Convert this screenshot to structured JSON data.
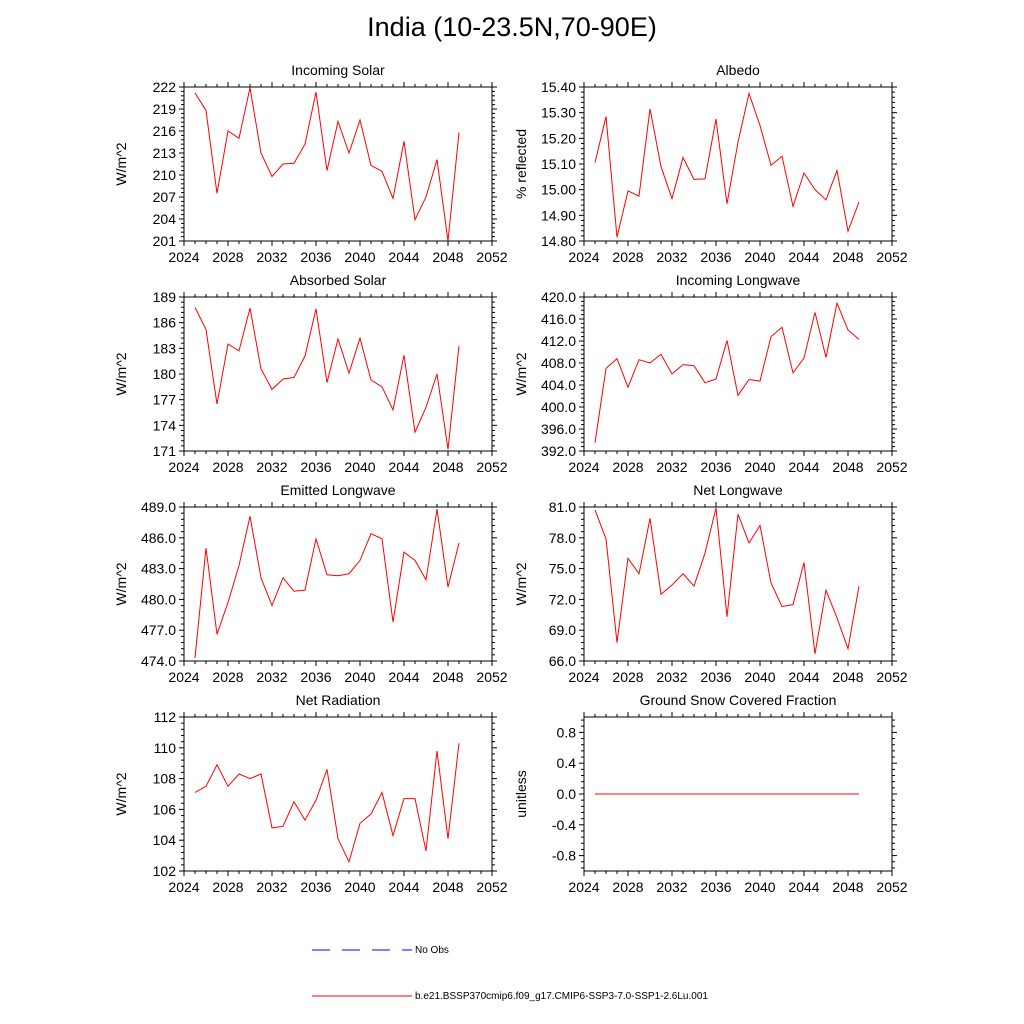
{
  "title": "India (10-23.5N,70-90E)",
  "colors": {
    "model": "#ff0000",
    "obs": "#0000ff"
  },
  "legend": {
    "obs_label": "No Obs",
    "model_label": "b.e21.BSSP370cmip6.f09_g17.CMIP6-SSP3-7.0-SSP1-2.6Lu.001"
  },
  "chart_data": [
    {
      "type": "line",
      "title": "Incoming Solar",
      "ylabel": "W/m^2",
      "xlim": [
        2024,
        2052
      ],
      "xticks": [
        2024,
        2028,
        2032,
        2036,
        2040,
        2044,
        2048,
        2052
      ],
      "ylim": [
        201,
        222
      ],
      "yticks": [
        201,
        204,
        207,
        210,
        213,
        216,
        219,
        222
      ],
      "ytick_decimals": 0,
      "x": [
        2025,
        2026,
        2027,
        2028,
        2029,
        2030,
        2031,
        2032,
        2033,
        2034,
        2035,
        2036,
        2037,
        2038,
        2039,
        2040,
        2041,
        2042,
        2043,
        2044,
        2045,
        2046,
        2047,
        2048,
        2049
      ],
      "series": [
        {
          "values": [
            221.2,
            218.8,
            207.5,
            216.0,
            215.0,
            221.9,
            213.0,
            209.8,
            211.5,
            211.6,
            214.2,
            221.3,
            210.6,
            217.3,
            213.0,
            217.5,
            211.3,
            210.5,
            206.8,
            214.6,
            203.9,
            207.0,
            212.1,
            201.0,
            215.8
          ]
        }
      ]
    },
    {
      "type": "line",
      "title": "Albedo",
      "ylabel": "% reflected",
      "xlim": [
        2024,
        2052
      ],
      "xticks": [
        2024,
        2028,
        2032,
        2036,
        2040,
        2044,
        2048,
        2052
      ],
      "ylim": [
        14.8,
        15.4
      ],
      "yticks": [
        14.8,
        14.9,
        15.0,
        15.1,
        15.2,
        15.3,
        15.4
      ],
      "ytick_decimals": 2,
      "x": [
        2025,
        2026,
        2027,
        2028,
        2029,
        2030,
        2031,
        2032,
        2033,
        2034,
        2035,
        2036,
        2037,
        2038,
        2039,
        2040,
        2041,
        2042,
        2043,
        2044,
        2045,
        2046,
        2047,
        2048,
        2049
      ],
      "series": [
        {
          "values": [
            15.105,
            15.285,
            14.815,
            14.995,
            14.975,
            15.315,
            15.09,
            14.965,
            15.125,
            15.04,
            15.042,
            15.275,
            14.945,
            15.185,
            15.375,
            15.25,
            15.095,
            15.13,
            14.935,
            15.065,
            15.0,
            14.96,
            15.075,
            14.838,
            14.952
          ]
        }
      ]
    },
    {
      "type": "line",
      "title": "Absorbed Solar",
      "ylabel": "W/m^2",
      "xlim": [
        2024,
        2052
      ],
      "xticks": [
        2024,
        2028,
        2032,
        2036,
        2040,
        2044,
        2048,
        2052
      ],
      "ylim": [
        171,
        189
      ],
      "yticks": [
        171,
        174,
        177,
        180,
        183,
        186,
        189
      ],
      "ytick_decimals": 0,
      "x": [
        2025,
        2026,
        2027,
        2028,
        2029,
        2030,
        2031,
        2032,
        2033,
        2034,
        2035,
        2036,
        2037,
        2038,
        2039,
        2040,
        2041,
        2042,
        2043,
        2044,
        2045,
        2046,
        2047,
        2048,
        2049
      ],
      "series": [
        {
          "values": [
            187.8,
            185.2,
            176.5,
            183.5,
            182.7,
            187.7,
            180.6,
            178.2,
            179.4,
            179.6,
            182.1,
            187.6,
            179.0,
            184.1,
            180.1,
            184.2,
            179.3,
            178.5,
            175.8,
            182.2,
            173.2,
            176.1,
            180.0,
            171.2,
            183.3
          ]
        }
      ]
    },
    {
      "type": "line",
      "title": "Incoming Longwave",
      "ylabel": "W/m^2",
      "xlim": [
        2024,
        2052
      ],
      "xticks": [
        2024,
        2028,
        2032,
        2036,
        2040,
        2044,
        2048,
        2052
      ],
      "ylim": [
        392,
        420
      ],
      "yticks": [
        392,
        396,
        400,
        404,
        408,
        412,
        416,
        420
      ],
      "ytick_decimals": 1,
      "x": [
        2025,
        2026,
        2027,
        2028,
        2029,
        2030,
        2031,
        2032,
        2033,
        2034,
        2035,
        2036,
        2037,
        2038,
        2039,
        2040,
        2041,
        2042,
        2043,
        2044,
        2045,
        2046,
        2047,
        2048,
        2049
      ],
      "series": [
        {
          "values": [
            393.5,
            407.0,
            408.8,
            403.6,
            408.6,
            408.0,
            409.6,
            406.0,
            407.7,
            407.5,
            404.4,
            405.1,
            412.1,
            402.1,
            405.0,
            404.7,
            412.8,
            414.5,
            406.2,
            408.9,
            417.2,
            409.0,
            418.9,
            414.0,
            412.3
          ]
        }
      ]
    },
    {
      "type": "line",
      "title": "Emitted Longwave",
      "ylabel": "W/m^2",
      "xlim": [
        2024,
        2052
      ],
      "xticks": [
        2024,
        2028,
        2032,
        2036,
        2040,
        2044,
        2048,
        2052
      ],
      "ylim": [
        474,
        489
      ],
      "yticks": [
        474,
        477,
        480,
        483,
        486,
        489
      ],
      "ytick_decimals": 1,
      "x": [
        2025,
        2026,
        2027,
        2028,
        2029,
        2030,
        2031,
        2032,
        2033,
        2034,
        2035,
        2036,
        2037,
        2038,
        2039,
        2040,
        2041,
        2042,
        2043,
        2044,
        2045,
        2046,
        2047,
        2048,
        2049
      ],
      "series": [
        {
          "values": [
            474.3,
            485.0,
            476.6,
            479.7,
            483.3,
            488.1,
            482.1,
            479.4,
            482.1,
            480.8,
            480.9,
            485.9,
            482.4,
            482.3,
            482.5,
            483.8,
            486.4,
            485.9,
            477.8,
            484.6,
            483.8,
            481.9,
            488.8,
            481.2,
            485.5
          ]
        }
      ]
    },
    {
      "type": "line",
      "title": "Net Longwave",
      "ylabel": "W/m^2",
      "xlim": [
        2024,
        2052
      ],
      "xticks": [
        2024,
        2028,
        2032,
        2036,
        2040,
        2044,
        2048,
        2052
      ],
      "ylim": [
        66,
        81
      ],
      "yticks": [
        66,
        69,
        72,
        75,
        78,
        81
      ],
      "ytick_decimals": 1,
      "x": [
        2025,
        2026,
        2027,
        2028,
        2029,
        2030,
        2031,
        2032,
        2033,
        2034,
        2035,
        2036,
        2037,
        2038,
        2039,
        2040,
        2041,
        2042,
        2043,
        2044,
        2045,
        2046,
        2047,
        2048,
        2049
      ],
      "series": [
        {
          "values": [
            80.7,
            77.9,
            67.8,
            76.0,
            74.5,
            79.9,
            72.5,
            73.4,
            74.5,
            73.3,
            76.5,
            80.9,
            70.3,
            80.3,
            77.5,
            79.2,
            73.6,
            71.3,
            71.5,
            75.6,
            66.7,
            72.9,
            70.2,
            67.2,
            73.3
          ]
        }
      ]
    },
    {
      "type": "line",
      "title": "Net Radiation",
      "ylabel": "W/m^2",
      "xlim": [
        2024,
        2052
      ],
      "xticks": [
        2024,
        2028,
        2032,
        2036,
        2040,
        2044,
        2048,
        2052
      ],
      "ylim": [
        102,
        112
      ],
      "yticks": [
        102,
        104,
        106,
        108,
        110,
        112
      ],
      "ytick_decimals": 0,
      "x": [
        2025,
        2026,
        2027,
        2028,
        2029,
        2030,
        2031,
        2032,
        2033,
        2034,
        2035,
        2036,
        2037,
        2038,
        2039,
        2040,
        2041,
        2042,
        2043,
        2044,
        2045,
        2046,
        2047,
        2048,
        2049
      ],
      "series": [
        {
          "values": [
            107.1,
            107.5,
            108.9,
            107.5,
            108.3,
            108.0,
            108.3,
            104.8,
            104.9,
            106.5,
            105.3,
            106.6,
            108.6,
            104.1,
            102.6,
            105.1,
            105.7,
            107.1,
            104.3,
            106.7,
            106.7,
            103.3,
            109.8,
            104.1,
            110.3
          ]
        }
      ]
    },
    {
      "type": "line",
      "title": "Ground Snow Covered Fraction",
      "ylabel": "unitless",
      "xlim": [
        2024,
        2052
      ],
      "xticks": [
        2024,
        2028,
        2032,
        2036,
        2040,
        2044,
        2048,
        2052
      ],
      "ylim": [
        -1.0,
        1.0
      ],
      "yticks": [
        -0.8,
        -0.4,
        0.0,
        0.4,
        0.8
      ],
      "ytick_decimals": 1,
      "x": [
        2025,
        2026,
        2027,
        2028,
        2029,
        2030,
        2031,
        2032,
        2033,
        2034,
        2035,
        2036,
        2037,
        2038,
        2039,
        2040,
        2041,
        2042,
        2043,
        2044,
        2045,
        2046,
        2047,
        2048,
        2049
      ],
      "series": [
        {
          "values": [
            0,
            0,
            0,
            0,
            0,
            0,
            0,
            0,
            0,
            0,
            0,
            0,
            0,
            0,
            0,
            0,
            0,
            0,
            0,
            0,
            0,
            0,
            0,
            0,
            0
          ]
        }
      ]
    }
  ]
}
